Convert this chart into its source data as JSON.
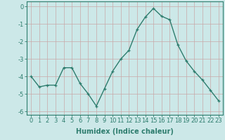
{
  "x": [
    0,
    1,
    2,
    3,
    4,
    5,
    6,
    7,
    8,
    9,
    10,
    11,
    12,
    13,
    14,
    15,
    16,
    17,
    18,
    19,
    20,
    21,
    22,
    23
  ],
  "y": [
    -4.0,
    -4.6,
    -4.5,
    -4.5,
    -3.5,
    -3.5,
    -4.4,
    -5.0,
    -5.7,
    -4.7,
    -3.7,
    -3.0,
    -2.5,
    -1.3,
    -0.6,
    -0.1,
    -0.55,
    -0.75,
    -2.2,
    -3.1,
    -3.7,
    -4.2,
    -4.8,
    -5.4
  ],
  "line_color": "#2e7d6e",
  "marker": "+",
  "marker_size": 3,
  "bg_color": "#cce8e8",
  "grid_color": "#c8a8a8",
  "xlabel": "Humidex (Indice chaleur)",
  "ylim": [
    -6.2,
    0.3
  ],
  "xlim": [
    -0.5,
    23.5
  ],
  "yticks": [
    0,
    -1,
    -2,
    -3,
    -4,
    -5,
    -6
  ],
  "xticks": [
    0,
    1,
    2,
    3,
    4,
    5,
    6,
    7,
    8,
    9,
    10,
    11,
    12,
    13,
    14,
    15,
    16,
    17,
    18,
    19,
    20,
    21,
    22,
    23
  ],
  "tick_fontsize": 6,
  "label_fontsize": 7
}
